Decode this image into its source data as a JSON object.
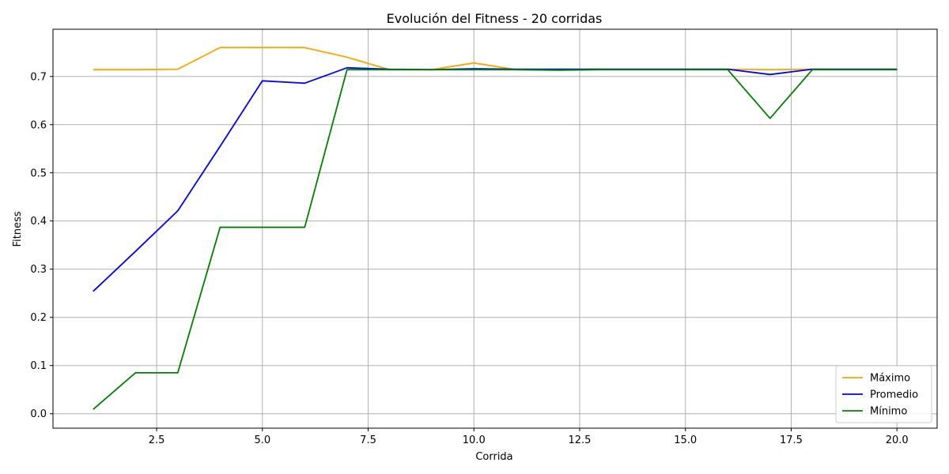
{
  "chart_data": {
    "type": "line",
    "title": "Evolución del Fitness - 20 corridas",
    "xlabel": "Corrida",
    "ylabel": "Fitness",
    "xlim": [
      0.05,
      20.95
    ],
    "ylim": [
      -0.03,
      0.798
    ],
    "xticks": [
      2.5,
      5.0,
      7.5,
      10.0,
      12.5,
      15.0,
      17.5,
      20.0
    ],
    "yticks": [
      0.0,
      0.1,
      0.2,
      0.3,
      0.4,
      0.5,
      0.6,
      0.7
    ],
    "xtick_labels": [
      "2.5",
      "5.0",
      "7.5",
      "10.0",
      "12.5",
      "15.0",
      "17.5",
      "20.0"
    ],
    "ytick_labels": [
      "0.0",
      "0.1",
      "0.2",
      "0.3",
      "0.4",
      "0.5",
      "0.6",
      "0.7"
    ],
    "grid": true,
    "legend_position": "lower-right",
    "x": [
      1,
      2,
      3,
      4,
      5,
      6,
      7,
      8,
      9,
      10,
      11,
      12,
      13,
      14,
      15,
      16,
      17,
      18,
      19,
      20
    ],
    "series": [
      {
        "name": "Máximo",
        "color": "#ffa500",
        "values": [
          0.714,
          0.714,
          0.715,
          0.76,
          0.76,
          0.76,
          0.74,
          0.714,
          0.714,
          0.728,
          0.714,
          0.714,
          0.715,
          0.715,
          0.715,
          0.715,
          0.714,
          0.715,
          0.715,
          0.715
        ]
      },
      {
        "name": "Promedio",
        "color": "#0000ff",
        "values": [
          0.254,
          0.337,
          0.421,
          0.555,
          0.691,
          0.686,
          0.718,
          0.715,
          0.714,
          0.716,
          0.715,
          0.715,
          0.715,
          0.715,
          0.715,
          0.715,
          0.704,
          0.715,
          0.715,
          0.715
        ]
      },
      {
        "name": "Mínimo",
        "color": "#008000",
        "values": [
          0.009,
          0.085,
          0.085,
          0.387,
          0.387,
          0.387,
          0.714,
          0.714,
          0.714,
          0.714,
          0.714,
          0.713,
          0.714,
          0.714,
          0.714,
          0.714,
          0.613,
          0.714,
          0.714,
          0.714
        ]
      }
    ]
  }
}
